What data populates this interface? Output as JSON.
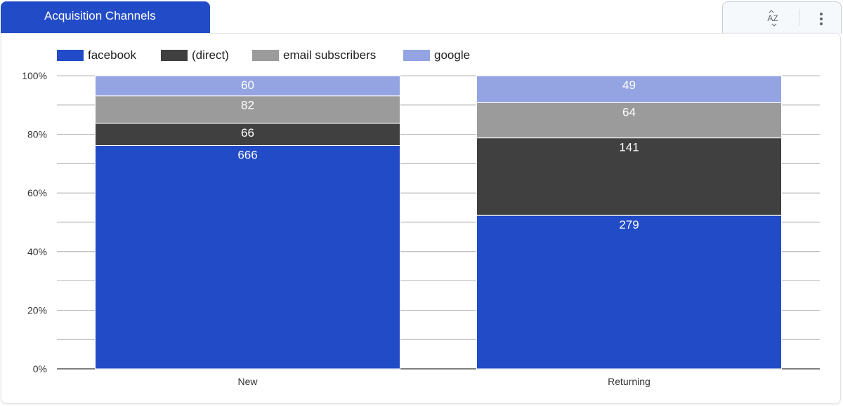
{
  "header": {
    "tab_label": "Acquisition Channels",
    "sort_icon": "sort-az-icon",
    "more_icon": "more-vert-icon"
  },
  "colors": {
    "accent": "#224bc7",
    "facebook": "#224bc7",
    "direct": "#404040",
    "email": "#9b9b9b",
    "google": "#94a4e2",
    "gridline": "#cccccc",
    "axis": "#333333"
  },
  "chart_data": {
    "type": "bar",
    "stacked": true,
    "normalized": true,
    "categories": [
      "New",
      "Returning"
    ],
    "series": [
      {
        "name": "facebook",
        "values": [
          666,
          279
        ]
      },
      {
        "name": "(direct)",
        "values": [
          66,
          141
        ]
      },
      {
        "name": "email subscribers",
        "values": [
          82,
          64
        ]
      },
      {
        "name": "google",
        "values": [
          60,
          49
        ]
      }
    ],
    "y_ticks": [
      "0%",
      "20%",
      "40%",
      "60%",
      "80%",
      "100%"
    ],
    "ylim": [
      0,
      100
    ],
    "grid": true,
    "legend": "top-left"
  }
}
